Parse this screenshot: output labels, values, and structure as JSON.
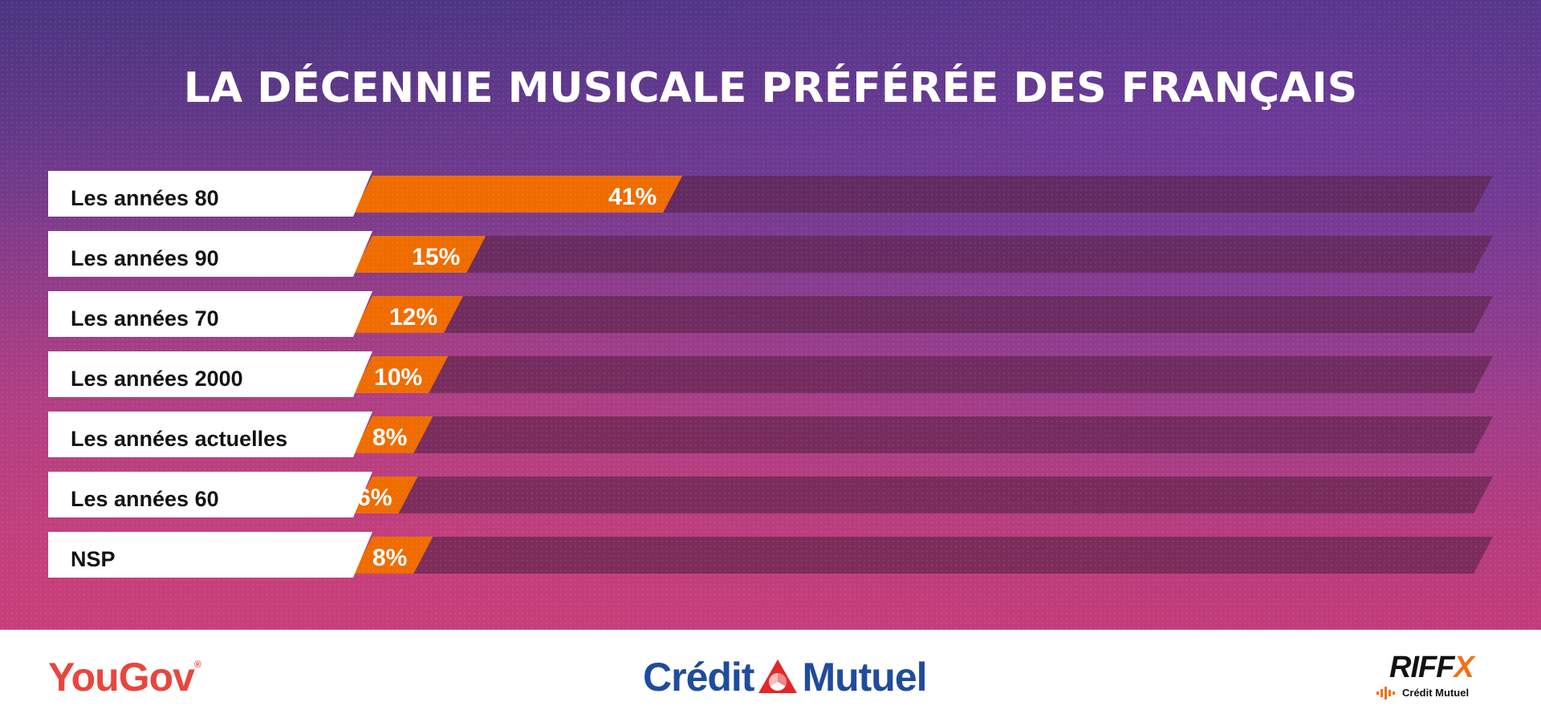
{
  "title": "LA DÉCENNIE MUSICALE PRÉFÉRÉE DES FRANÇAIS",
  "colors": {
    "bar_fill": "#ef6c00",
    "bar_track": "#5a2448",
    "label_background": "#ffffff",
    "title_text": "#ffffff"
  },
  "chart_data": {
    "type": "bar",
    "orientation": "horizontal",
    "categories": [
      "Les années 80",
      "Les années 90",
      "Les années 70",
      "Les années 2000",
      "Les années actuelles",
      "Les années 60",
      "NSP"
    ],
    "values": [
      41,
      15,
      12,
      10,
      8,
      6,
      8
    ],
    "value_labels": [
      "41%",
      "15%",
      "12%",
      "10%",
      "8%",
      "6%",
      "8%"
    ],
    "unit": "%",
    "xlim": [
      0,
      100
    ],
    "grid": false,
    "legend": "none"
  },
  "footer": {
    "logos": [
      {
        "name": "YouGov",
        "text": "YouGov",
        "mark": "®",
        "color": "#e8463f"
      },
      {
        "name": "Crédit Mutuel",
        "left": "Crédit",
        "right": "Mutuel",
        "color": "#1f4c9c",
        "accent": "#e2272a"
      },
      {
        "name": "RIFF X",
        "word": "RIFF",
        "x": "X",
        "sub": "Crédit Mutuel",
        "accent": "#f07216"
      }
    ]
  }
}
